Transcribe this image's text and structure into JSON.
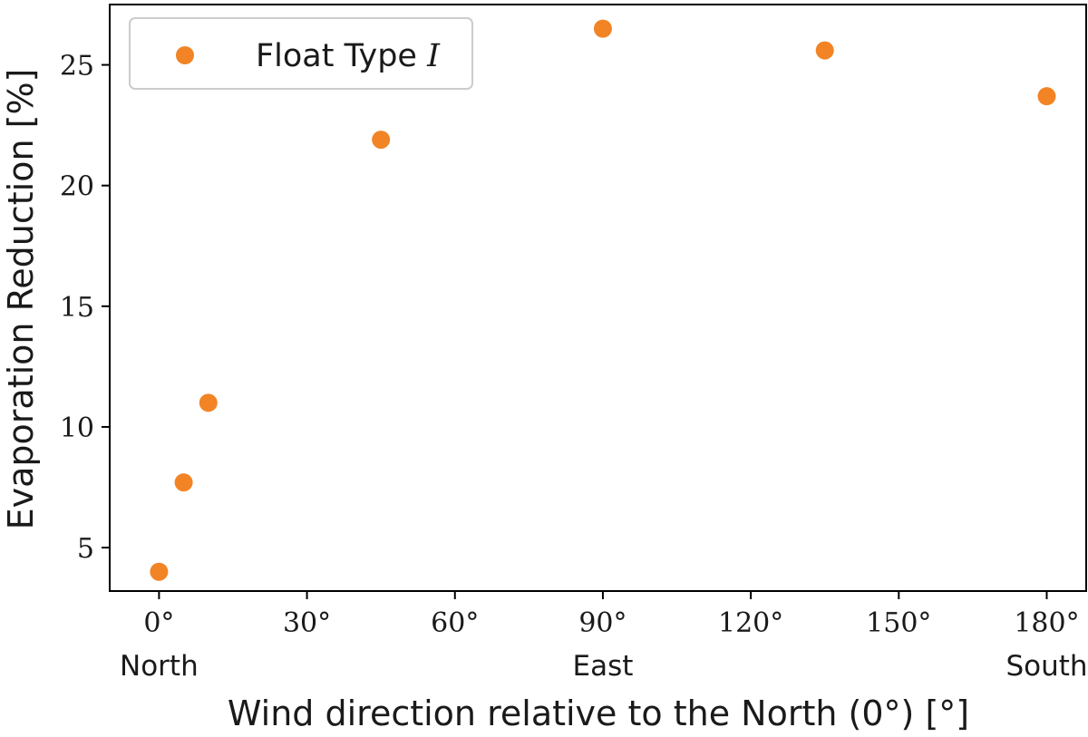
{
  "chart_data": {
    "type": "scatter",
    "series": [
      {
        "name": "Float Type I",
        "color": "#f28426",
        "x": [
          0,
          5,
          10,
          45,
          90,
          135,
          180
        ],
        "y": [
          4.0,
          7.7,
          11.0,
          21.9,
          26.5,
          25.6,
          23.7
        ]
      }
    ],
    "xlabel": "Wind direction relative to the North (0°) [°]",
    "ylabel": "Evaporation Reduction [%]",
    "xlim": [
      -10,
      188
    ],
    "ylim": [
      3.2,
      27.5
    ],
    "xticks": [
      0,
      30,
      60,
      90,
      120,
      150,
      180
    ],
    "xtick_labels": [
      "0°",
      "30°",
      "60°",
      "90°",
      "120°",
      "150°",
      "180°"
    ],
    "xtick_sublabels": [
      {
        "x": 0,
        "label": "North"
      },
      {
        "x": 90,
        "label": "East"
      },
      {
        "x": 180,
        "label": "South"
      }
    ],
    "yticks": [
      5,
      10,
      15,
      20,
      25
    ],
    "ytick_labels": [
      "5",
      "10",
      "15",
      "20",
      "25"
    ],
    "legend": {
      "position": "upper-left",
      "label_text": "Float Type ",
      "label_italic": "I"
    },
    "grid": false
  }
}
